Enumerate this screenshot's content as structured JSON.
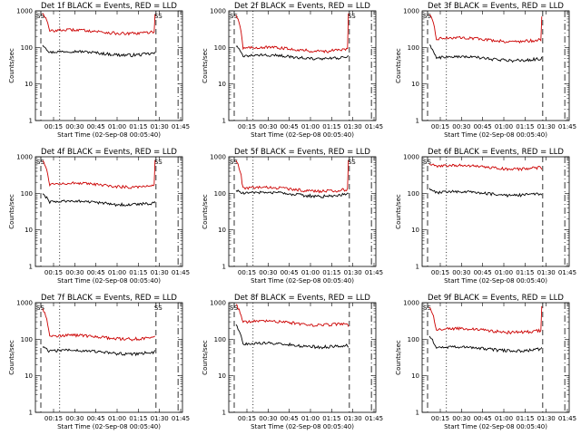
{
  "chart_data": [
    {
      "type": "line",
      "title": "Det 1f BLACK = Events, RED = LLD",
      "xlabel": "Start Time (02-Sep-08 00:05:40)",
      "ylabel": "Counts/sec",
      "yscale": "log",
      "ylim": [
        1,
        1000
      ],
      "x_ticks": [
        "00:15",
        "00:30",
        "00:45",
        "01:00",
        "01:15",
        "01:30",
        "01:45"
      ],
      "y_ticks": [
        "1",
        "10",
        "100",
        "1000"
      ],
      "markers": [
        "SS",
        "SS"
      ],
      "series": [
        {
          "name": "Events",
          "color": "#000000",
          "level": 70,
          "start_value": 120,
          "end_value": 75
        },
        {
          "name": "LLD",
          "color": "#cc0000",
          "level": 270,
          "start_value": 900,
          "end_value": 800
        }
      ]
    },
    {
      "type": "line",
      "title": "Det 2f BLACK = Events, RED = LLD",
      "xlabel": "Start Time (02-Sep-08 00:05:40)",
      "ylabel": "Counts/sec",
      "yscale": "log",
      "ylim": [
        1,
        1000
      ],
      "x_ticks": [
        "00:15",
        "00:30",
        "00:45",
        "01:00",
        "01:15",
        "01:30",
        "01:45"
      ],
      "y_ticks": [
        "1",
        "10",
        "100",
        "1000"
      ],
      "markers": [
        "SS",
        "SS"
      ],
      "series": [
        {
          "name": "Events",
          "color": "#000000",
          "level": 55,
          "start_value": 110,
          "end_value": 60
        },
        {
          "name": "LLD",
          "color": "#cc0000",
          "level": 90,
          "start_value": 800,
          "end_value": 850
        }
      ]
    },
    {
      "type": "line",
      "title": "Det 3f BLACK = Events, RED = LLD",
      "xlabel": "Start Time (02-Sep-08 00:05:40)",
      "ylabel": "Counts/sec",
      "yscale": "log",
      "ylim": [
        1,
        1000
      ],
      "x_ticks": [
        "00:15",
        "00:30",
        "00:45",
        "01:00",
        "01:15",
        "01:30",
        "01:45"
      ],
      "y_ticks": [
        "1",
        "10",
        "100",
        "1000"
      ],
      "markers": [
        "SS"
      ],
      "series": [
        {
          "name": "Events",
          "color": "#000000",
          "level": 50,
          "start_value": 120,
          "end_value": 55
        },
        {
          "name": "LLD",
          "color": "#cc0000",
          "level": 165,
          "start_value": 800,
          "end_value": 700
        }
      ]
    },
    {
      "type": "line",
      "title": "Det 4f BLACK = Events, RED = LLD",
      "xlabel": "Start Time (02-Sep-08 00:05:40)",
      "ylabel": "Counts/sec",
      "yscale": "log",
      "ylim": [
        1,
        1000
      ],
      "x_ticks": [
        "00:15",
        "00:30",
        "00:45",
        "01:00",
        "01:15",
        "01:30",
        "01:45"
      ],
      "y_ticks": [
        "1",
        "10",
        "100",
        "1000"
      ],
      "markers": [
        "SS",
        "SS"
      ],
      "series": [
        {
          "name": "Events",
          "color": "#000000",
          "level": 55,
          "start_value": 100,
          "end_value": 60
        },
        {
          "name": "LLD",
          "color": "#cc0000",
          "level": 170,
          "start_value": 800,
          "end_value": 800
        }
      ]
    },
    {
      "type": "line",
      "title": "Det 5f BLACK = Events, RED = LLD",
      "xlabel": "Start Time (02-Sep-08 00:05:40)",
      "ylabel": "Counts/sec",
      "yscale": "log",
      "ylim": [
        1,
        1000
      ],
      "x_ticks": [
        "00:15",
        "00:30",
        "00:45",
        "01:00",
        "01:15",
        "01:30",
        "01:45"
      ],
      "y_ticks": [
        "1",
        "10",
        "100",
        "1000"
      ],
      "markers": [
        "SS",
        "SS"
      ],
      "series": [
        {
          "name": "Events",
          "color": "#000000",
          "level": 95,
          "start_value": 120,
          "end_value": 100
        },
        {
          "name": "LLD",
          "color": "#cc0000",
          "level": 130,
          "start_value": 800,
          "end_value": 800
        }
      ]
    },
    {
      "type": "line",
      "title": "Det 6f BLACK = Events, RED = LLD",
      "xlabel": "Start Time (02-Sep-08 00:05:40)",
      "ylabel": "Counts/sec",
      "yscale": "log",
      "ylim": [
        1,
        1000
      ],
      "x_ticks": [
        "00:15",
        "00:30",
        "00:45",
        "01:00",
        "01:15",
        "01:30",
        "01:45"
      ],
      "y_ticks": [
        "1",
        "10",
        "100",
        "1000"
      ],
      "markers": [
        "SS"
      ],
      "series": [
        {
          "name": "Events",
          "color": "#000000",
          "level": 100,
          "start_value": 140,
          "end_value": 90
        },
        {
          "name": "LLD",
          "color": "#cc0000",
          "level": 520,
          "start_value": 650,
          "end_value": 450
        }
      ]
    },
    {
      "type": "line",
      "title": "Det 7f BLACK = Events, RED = LLD",
      "xlabel": "Start Time (02-Sep-08 00:05:40)",
      "ylabel": "Counts/sec",
      "yscale": "log",
      "ylim": [
        1,
        1000
      ],
      "x_ticks": [
        "00:15",
        "00:30",
        "00:45",
        "01:00",
        "01:15",
        "01:30",
        "01:45"
      ],
      "y_ticks": [
        "1",
        "10",
        "100",
        "1000"
      ],
      "markers": [
        "SS",
        "SS"
      ],
      "series": [
        {
          "name": "Events",
          "color": "#000000",
          "level": 45,
          "start_value": 60,
          "end_value": 50
        },
        {
          "name": "LLD",
          "color": "#cc0000",
          "level": 115,
          "start_value": 700,
          "end_value": 120
        }
      ]
    },
    {
      "type": "line",
      "title": "Det 8f BLACK = Events, RED = LLD",
      "xlabel": "Start Time (02-Sep-08 00:05:40)",
      "ylabel": "Counts/sec",
      "yscale": "log",
      "ylim": [
        1,
        1000
      ],
      "x_ticks": [
        "00:15",
        "00:30",
        "00:45",
        "01:00",
        "01:15",
        "01:30",
        "01:45"
      ],
      "y_ticks": [
        "1",
        "10",
        "100",
        "1000"
      ],
      "markers": [
        "SS"
      ],
      "series": [
        {
          "name": "Events",
          "color": "#000000",
          "level": 70,
          "start_value": 250,
          "end_value": 60
        },
        {
          "name": "LLD",
          "color": "#cc0000",
          "level": 280,
          "start_value": 900,
          "end_value": 220
        }
      ]
    },
    {
      "type": "line",
      "title": "Det 9f BLACK = Events, RED = LLD",
      "xlabel": "Start Time (02-Sep-08 00:05:40)",
      "ylabel": "Counts/sec",
      "yscale": "log",
      "ylim": [
        1,
        1000
      ],
      "x_ticks": [
        "00:15",
        "00:30",
        "00:45",
        "01:00",
        "01:15",
        "01:30",
        "01:45"
      ],
      "y_ticks": [
        "1",
        "10",
        "100",
        "1000"
      ],
      "markers": [
        "SS"
      ],
      "series": [
        {
          "name": "Events",
          "color": "#000000",
          "level": 55,
          "start_value": 120,
          "end_value": 60
        },
        {
          "name": "LLD",
          "color": "#cc0000",
          "level": 175,
          "start_value": 750,
          "end_value": 800
        }
      ]
    }
  ]
}
